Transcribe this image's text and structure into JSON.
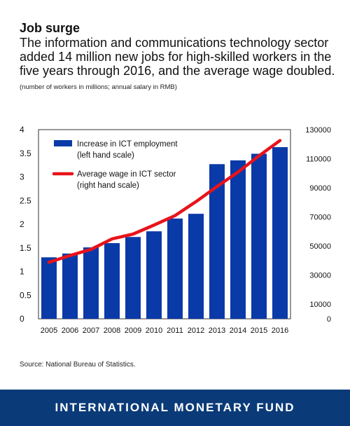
{
  "header": {
    "title": "Job surge",
    "subtitle": "The information and communications technology sector added 14 million new jobs for high-skilled workers in the five years through 2016, and the average wage doubled.",
    "units_note": "(number of workers in millions; annual salary in RMB)"
  },
  "source": "Source: National Bureau of Statistics.",
  "footer": {
    "label": "INTERNATIONAL MONETARY FUND"
  },
  "colors": {
    "bar": "#0a3aa8",
    "line": "#e8131b",
    "footer_bg": "#0a3a78"
  },
  "chart_data": {
    "type": "bar",
    "categories": [
      "2005",
      "2006",
      "2007",
      "2008",
      "2009",
      "2010",
      "2011",
      "2012",
      "2013",
      "2014",
      "2015",
      "2016"
    ],
    "series": [
      {
        "name": "Increase in ICT employment",
        "name_line2": "(left hand scale)",
        "type": "bar",
        "axis": "left",
        "values": [
          1.3,
          1.38,
          1.51,
          1.6,
          1.73,
          1.85,
          2.12,
          2.22,
          3.27,
          3.35,
          3.49,
          3.63
        ]
      },
      {
        "name": "Average wage in ICT sector",
        "name_line2": "(right hand scale)",
        "type": "line",
        "axis": "right",
        "values": [
          38800,
          43500,
          47700,
          54900,
          58200,
          64400,
          70900,
          80500,
          90900,
          100800,
          112000,
          122500
        ]
      }
    ],
    "y_left": {
      "min": 0,
      "max": 4,
      "ticks": [
        "0",
        "0.5",
        "1",
        "1.5",
        "2",
        "2.5",
        "3",
        "3.5",
        "4"
      ]
    },
    "y_right": {
      "min": 0,
      "max": 130000,
      "ticks": [
        "0",
        "10000",
        "30000",
        "50000",
        "70000",
        "90000",
        "110000",
        "130000"
      ]
    },
    "grid": false,
    "legend_position": "top-left"
  }
}
